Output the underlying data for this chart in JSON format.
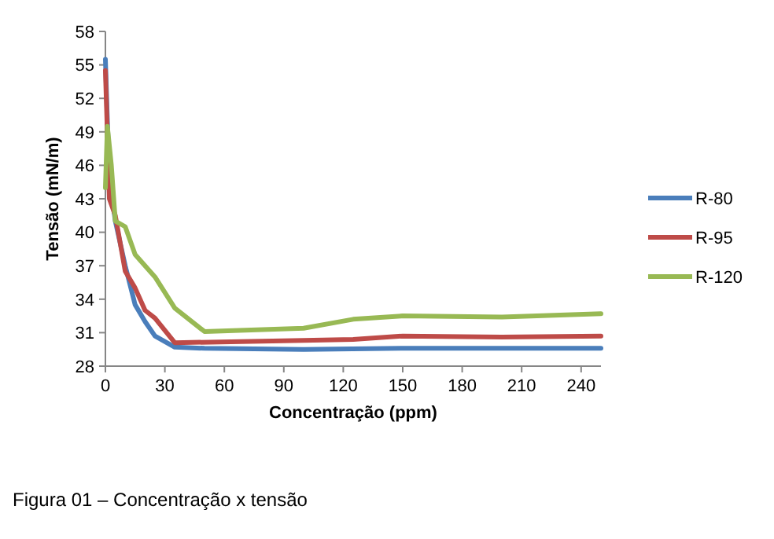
{
  "chart_data": {
    "type": "line",
    "xlabel": "Concentração (ppm)",
    "ylabel": "Tensão (mN/m)",
    "xlim": [
      0,
      250
    ],
    "xticks": [
      0,
      30,
      60,
      90,
      120,
      150,
      180,
      210,
      240
    ],
    "ylim": [
      28,
      58
    ],
    "yticks": [
      28,
      31,
      34,
      37,
      40,
      43,
      46,
      49,
      52,
      55,
      58
    ],
    "legend": "right",
    "grid": false,
    "marker": "none",
    "line_style": "solid",
    "annotations": [
      "Figura 01 – Concentração x  tensão"
    ],
    "series": [
      {
        "name": "R-80",
        "color": "#4a7ebb",
        "x": [
          0,
          1,
          2,
          5,
          10,
          15,
          20,
          25,
          35,
          50,
          100,
          150,
          200,
          250
        ],
        "values": [
          55.5,
          50,
          45,
          41,
          37,
          33.5,
          32,
          30.7,
          29.7,
          29.6,
          29.5,
          29.6,
          29.6,
          29.6
        ]
      },
      {
        "name": "R-95",
        "color": "#be4b48",
        "x": [
          0,
          1,
          2,
          5,
          10,
          15,
          20,
          25,
          35,
          100,
          125,
          150,
          200,
          250
        ],
        "values": [
          54.5,
          null,
          43,
          41.5,
          36.5,
          35,
          33,
          32.3,
          30.1,
          30.3,
          30.4,
          30.7,
          30.6,
          30.7
        ]
      },
      {
        "name": "R-120",
        "color": "#98b954",
        "x": [
          0,
          1,
          3,
          5,
          10,
          15,
          25,
          35,
          50,
          100,
          125,
          150,
          200,
          250
        ],
        "values": [
          44,
          49.5,
          46,
          41,
          40.5,
          38,
          36,
          33.2,
          31.1,
          31.4,
          32.2,
          32.5,
          32.4,
          32.7
        ]
      }
    ]
  }
}
